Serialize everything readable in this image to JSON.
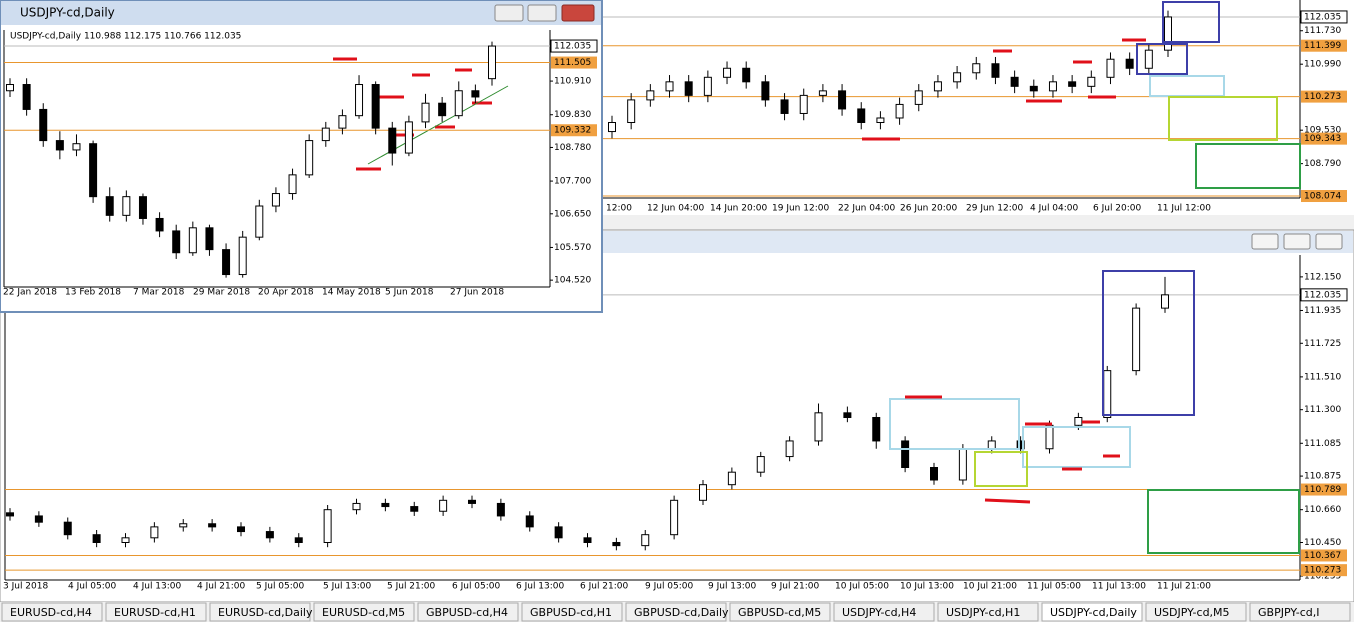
{
  "windows": [
    {
      "title": "USDJPY-cd,Daily",
      "header": "USDJPY-cd,Daily  110.988 112.175 110.766 112.035",
      "ylim": [
        104.3,
        112.55
      ],
      "yticks": [
        {
          "value": 110.91,
          "label": "110.910"
        },
        {
          "value": 109.83,
          "label": "109.830"
        },
        {
          "value": 108.78,
          "label": "108.780"
        },
        {
          "value": 107.7,
          "label": "107.700"
        },
        {
          "value": 106.65,
          "label": "106.650"
        },
        {
          "value": 105.57,
          "label": "105.570"
        },
        {
          "value": 104.52,
          "label": "104.520"
        }
      ],
      "levels": [
        {
          "value": 111.505,
          "label": "111.505"
        },
        {
          "value": 109.332,
          "label": "109.332"
        }
      ],
      "current": {
        "value": 112.035,
        "label": "112.035"
      },
      "xlabels": [
        "22 Jan 2018",
        "13 Feb 2018",
        "7 Mar 2018",
        "29 Mar 2018",
        "20 Apr 2018",
        "14 May 2018",
        "5 Jun 2018",
        "27 Jun 2018"
      ],
      "candles": [
        [
          110.6,
          111.0,
          110.4,
          110.8
        ],
        [
          110.8,
          111.0,
          109.8,
          110.0
        ],
        [
          110.0,
          110.2,
          108.8,
          109.0
        ],
        [
          109.0,
          109.3,
          108.4,
          108.7
        ],
        [
          108.7,
          109.2,
          108.5,
          108.9
        ],
        [
          108.9,
          109.0,
          107.0,
          107.2
        ],
        [
          107.2,
          107.5,
          106.4,
          106.6
        ],
        [
          106.6,
          107.4,
          106.4,
          107.2
        ],
        [
          107.2,
          107.3,
          106.3,
          106.5
        ],
        [
          106.5,
          106.7,
          105.9,
          106.1
        ],
        [
          106.1,
          106.3,
          105.2,
          105.4
        ],
        [
          105.4,
          106.4,
          105.3,
          106.2
        ],
        [
          106.2,
          106.3,
          105.3,
          105.5
        ],
        [
          105.5,
          105.7,
          104.6,
          104.7
        ],
        [
          104.7,
          106.1,
          104.6,
          105.9
        ],
        [
          105.9,
          107.1,
          105.8,
          106.9
        ],
        [
          106.9,
          107.5,
          106.7,
          107.3
        ],
        [
          107.3,
          108.1,
          107.1,
          107.9
        ],
        [
          107.9,
          109.2,
          107.8,
          109.0
        ],
        [
          109.0,
          109.6,
          108.8,
          109.4
        ],
        [
          109.4,
          110.0,
          109.2,
          109.8
        ],
        [
          109.8,
          111.1,
          109.7,
          110.8
        ],
        [
          110.8,
          110.9,
          109.2,
          109.4
        ],
        [
          109.4,
          109.6,
          108.2,
          108.6
        ],
        [
          108.6,
          109.8,
          108.5,
          109.6
        ],
        [
          109.6,
          110.5,
          109.4,
          110.2
        ],
        [
          110.2,
          110.4,
          109.6,
          109.8
        ],
        [
          109.8,
          110.9,
          109.7,
          110.6
        ],
        [
          110.6,
          110.8,
          110.2,
          110.4
        ],
        [
          110.988,
          112.175,
          110.766,
          112.035
        ]
      ]
    },
    {
      "ylim": [
        108.03,
        112.41
      ],
      "yticks": [
        {
          "value": 111.73,
          "label": "111.730"
        },
        {
          "value": 110.99,
          "label": "110.990"
        },
        {
          "value": 109.53,
          "label": "109.530"
        },
        {
          "value": 108.79,
          "label": "108.790"
        }
      ],
      "levels": [
        {
          "value": 111.399,
          "label": "111.399"
        },
        {
          "value": 110.273,
          "label": "110.273"
        },
        {
          "value": 109.343,
          "label": "109.343"
        },
        {
          "value": 108.074,
          "label": "108.074"
        }
      ],
      "current": {
        "value": 112.035,
        "label": "112.035"
      },
      "xlabels": [
        "12:00",
        "12 Jun 04:00",
        "14 Jun 20:00",
        "19 Jun 12:00",
        "22 Jun 04:00",
        "26 Jun 20:00",
        "29 Jun 12:00",
        "4 Jul 04:00",
        "6 Jul 20:00",
        "11 Jul 12:00"
      ],
      "candles": [
        [
          109.5,
          109.85,
          109.35,
          109.7
        ],
        [
          109.7,
          110.35,
          109.55,
          110.2
        ],
        [
          110.2,
          110.55,
          110.05,
          110.4
        ],
        [
          110.4,
          110.75,
          110.25,
          110.6
        ],
        [
          110.6,
          110.75,
          110.15,
          110.3
        ],
        [
          110.3,
          110.85,
          110.15,
          110.7
        ],
        [
          110.7,
          111.05,
          110.55,
          110.9
        ],
        [
          110.9,
          111.05,
          110.45,
          110.6
        ],
        [
          110.6,
          110.75,
          110.05,
          110.2
        ],
        [
          110.2,
          110.35,
          109.75,
          109.9
        ],
        [
          109.9,
          110.45,
          109.75,
          110.3
        ],
        [
          110.3,
          110.55,
          110.15,
          110.4
        ],
        [
          110.4,
          110.55,
          109.85,
          110.0
        ],
        [
          110.0,
          110.15,
          109.55,
          109.7
        ],
        [
          109.7,
          109.95,
          109.55,
          109.8
        ],
        [
          109.8,
          110.25,
          109.65,
          110.1
        ],
        [
          110.1,
          110.55,
          109.95,
          110.4
        ],
        [
          110.4,
          110.75,
          110.25,
          110.6
        ],
        [
          110.6,
          110.95,
          110.45,
          110.8
        ],
        [
          110.8,
          111.15,
          110.65,
          111.0
        ],
        [
          111.0,
          111.15,
          110.55,
          110.7
        ],
        [
          110.7,
          110.85,
          110.35,
          110.5
        ],
        [
          110.5,
          110.65,
          110.25,
          110.4
        ],
        [
          110.4,
          110.75,
          110.25,
          110.6
        ],
        [
          110.6,
          110.75,
          110.35,
          110.5
        ],
        [
          110.5,
          110.85,
          110.35,
          110.7
        ],
        [
          110.7,
          111.25,
          110.55,
          111.1
        ],
        [
          111.1,
          111.25,
          110.75,
          110.9
        ],
        [
          110.9,
          111.45,
          110.75,
          111.3
        ],
        [
          111.3,
          112.175,
          111.15,
          112.035
        ]
      ]
    },
    {
      "ylim": [
        110.21,
        112.29
      ],
      "yticks": [
        {
          "value": 112.15,
          "label": "112.150"
        },
        {
          "value": 111.935,
          "label": "111.935"
        },
        {
          "value": 111.725,
          "label": "111.725"
        },
        {
          "value": 111.51,
          "label": "111.510"
        },
        {
          "value": 111.3,
          "label": "111.300"
        },
        {
          "value": 111.085,
          "label": "111.085"
        },
        {
          "value": 110.875,
          "label": "110.875"
        },
        {
          "value": 110.66,
          "label": "110.660"
        },
        {
          "value": 110.45,
          "label": "110.450"
        },
        {
          "value": 110.235,
          "label": "110.235"
        }
      ],
      "levels": [
        {
          "value": 110.789,
          "label": "110.789"
        },
        {
          "value": 110.367,
          "label": "110.367"
        },
        {
          "value": 110.273,
          "label": "110.273"
        }
      ],
      "current": {
        "value": 112.035,
        "label": "112.035"
      },
      "xlabels": [
        "3 Jul 2018",
        "4 Jul 05:00",
        "4 Jul 13:00",
        "4 Jul 21:00",
        "5 Jul 05:00",
        "5 Jul 13:00",
        "5 Jul 21:00",
        "6 Jul 05:00",
        "6 Jul 13:00",
        "6 Jul 21:00",
        "9 Jul 05:00",
        "9 Jul 13:00",
        "9 Jul 21:00",
        "10 Jul 05:00",
        "10 Jul 13:00",
        "10 Jul 21:00",
        "11 Jul 05:00",
        "11 Jul 13:00",
        "11 Jul 21:00"
      ],
      "candles": [
        [
          110.64,
          110.67,
          110.59,
          110.62
        ],
        [
          110.62,
          110.65,
          110.55,
          110.58
        ],
        [
          110.58,
          110.61,
          110.47,
          110.5
        ],
        [
          110.5,
          110.53,
          110.42,
          110.45
        ],
        [
          110.45,
          110.51,
          110.42,
          110.48
        ],
        [
          110.48,
          110.58,
          110.45,
          110.55
        ],
        [
          110.55,
          110.6,
          110.52,
          110.57
        ],
        [
          110.57,
          110.6,
          110.52,
          110.55
        ],
        [
          110.55,
          110.58,
          110.49,
          110.52
        ],
        [
          110.52,
          110.55,
          110.45,
          110.48
        ],
        [
          110.48,
          110.51,
          110.42,
          110.45
        ],
        [
          110.45,
          110.69,
          110.42,
          110.66
        ],
        [
          110.66,
          110.73,
          110.63,
          110.7
        ],
        [
          110.7,
          110.73,
          110.65,
          110.68
        ],
        [
          110.68,
          110.71,
          110.62,
          110.65
        ],
        [
          110.65,
          110.75,
          110.62,
          110.72
        ],
        [
          110.72,
          110.75,
          110.67,
          110.7
        ],
        [
          110.7,
          110.73,
          110.59,
          110.62
        ],
        [
          110.62,
          110.65,
          110.52,
          110.55
        ],
        [
          110.55,
          110.58,
          110.45,
          110.48
        ],
        [
          110.48,
          110.51,
          110.42,
          110.45
        ],
        [
          110.45,
          110.48,
          110.4,
          110.43
        ],
        [
          110.43,
          110.53,
          110.4,
          110.5
        ],
        [
          110.5,
          110.75,
          110.47,
          110.72
        ],
        [
          110.72,
          110.85,
          110.69,
          110.82
        ],
        [
          110.82,
          110.93,
          110.79,
          110.9
        ],
        [
          110.9,
          111.03,
          110.87,
          111.0
        ],
        [
          111.0,
          111.13,
          110.97,
          111.1
        ],
        [
          111.1,
          111.34,
          111.07,
          111.28
        ],
        [
          111.28,
          111.32,
          111.22,
          111.25
        ],
        [
          111.25,
          111.28,
          111.05,
          111.1
        ],
        [
          111.1,
          111.13,
          110.9,
          110.93
        ],
        [
          110.93,
          110.96,
          110.82,
          110.85
        ],
        [
          110.85,
          111.08,
          110.82,
          111.05
        ],
        [
          111.05,
          111.13,
          111.02,
          111.1
        ],
        [
          111.1,
          111.13,
          111.02,
          111.05
        ],
        [
          111.05,
          111.23,
          111.02,
          111.2
        ],
        [
          111.2,
          111.28,
          111.17,
          111.25
        ],
        [
          111.25,
          111.58,
          111.22,
          111.55
        ],
        [
          111.55,
          111.98,
          111.52,
          111.95
        ],
        [
          111.95,
          112.15,
          111.92,
          112.035
        ]
      ]
    }
  ],
  "tabs": [
    "EURUSD-cd,H4",
    "EURUSD-cd,H1",
    "EURUSD-cd,Daily",
    "EURUSD-cd,M5",
    "GBPUSD-cd,H4",
    "GBPUSD-cd,H1",
    "GBPUSD-cd,Daily",
    "GBPUSD-cd,M5",
    "USDJPY-cd,H4",
    "USDJPY-cd,H1",
    "USDJPY-cd,Daily",
    "USDJPY-cd,M5",
    "GBPJPY-cd,I"
  ]
}
